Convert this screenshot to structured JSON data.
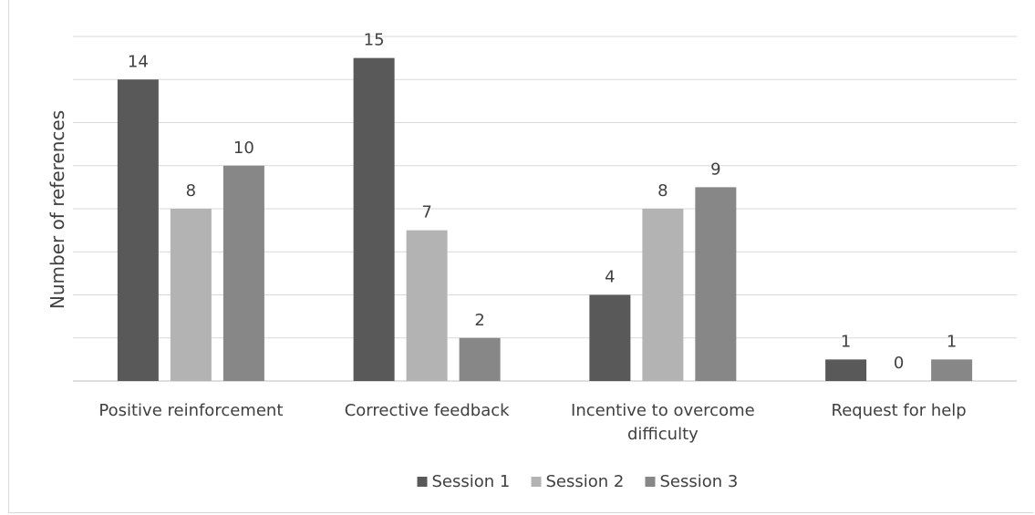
{
  "chart_data": {
    "type": "bar",
    "title": "",
    "xlabel": "",
    "ylabel": "Number of references",
    "ylim": [
      0,
      16
    ],
    "grid": true,
    "legend_position": "bottom",
    "categories": [
      [
        "Positive reinforcement"
      ],
      [
        "Corrective feedback"
      ],
      [
        "Incentive to overcome",
        "difficulty"
      ],
      [
        "Request for help"
      ]
    ],
    "series": [
      {
        "name": "Session 1",
        "color": "#595959",
        "values": [
          14,
          15,
          4,
          1
        ]
      },
      {
        "name": "Session 2",
        "color": "#b3b3b3",
        "values": [
          8,
          7,
          8,
          0
        ]
      },
      {
        "name": "Session 3",
        "color": "#878787",
        "values": [
          10,
          2,
          9,
          1
        ]
      }
    ]
  }
}
